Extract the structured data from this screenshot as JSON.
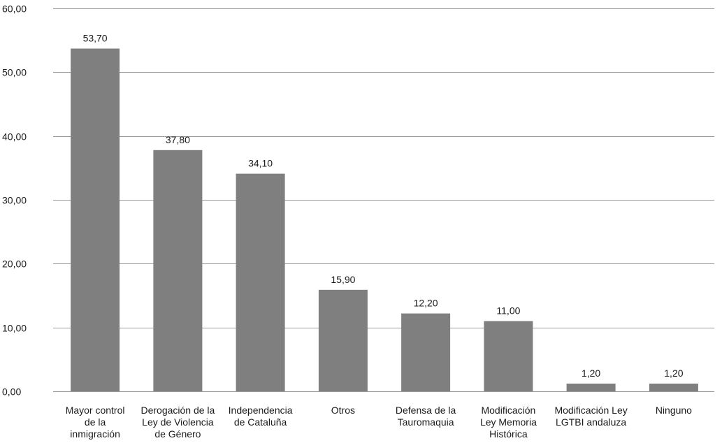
{
  "chart_data": {
    "type": "bar",
    "categories": [
      [
        "Mayor control",
        "de la",
        "inmigración"
      ],
      [
        "Derogación de la",
        "Ley de Violencia",
        "de Género"
      ],
      [
        "Independencia",
        "de Cataluña"
      ],
      [
        "Otros"
      ],
      [
        "Defensa de la",
        "Tauromaquia"
      ],
      [
        "Modificación",
        "Ley Memoria",
        "Histórica"
      ],
      [
        "Modificación Ley",
        "LGTBI andaluza"
      ],
      [
        "Ninguno"
      ]
    ],
    "values": [
      53.7,
      37.8,
      34.1,
      15.9,
      12.2,
      11.0,
      1.2,
      1.2
    ],
    "value_labels": [
      "53,70",
      "37,80",
      "34,10",
      "15,90",
      "12,20",
      "11,00",
      "1,20",
      "1,20"
    ],
    "ylim": [
      0,
      60
    ],
    "y_ticks": [
      0,
      10,
      20,
      30,
      40,
      50,
      60
    ],
    "y_tick_labels": [
      "0,00",
      "10,00",
      "20,00",
      "30,00",
      "40,00",
      "50,00",
      "60,00"
    ],
    "grid": true,
    "legend": "none",
    "bar_color": "#7f7f80",
    "grid_color": "#9a9a9a",
    "title": "",
    "xlabel": "",
    "ylabel": ""
  }
}
